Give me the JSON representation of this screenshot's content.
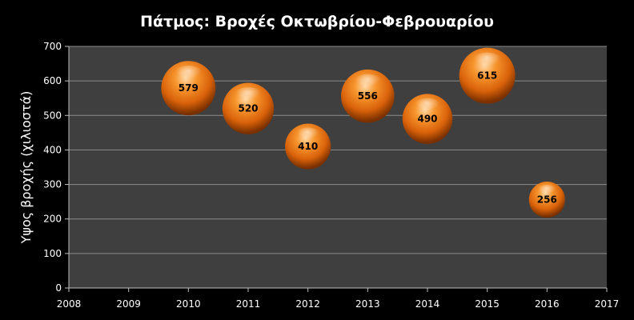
{
  "chart_data": {
    "type": "bubble",
    "title": "Πάτμος: Βροχές Οκτωβρίου-Φεβρουαρίου",
    "xlabel": "",
    "ylabel": "Υψος βροχής (χιλιοστά)",
    "xlim": [
      2008,
      2017
    ],
    "ylim": [
      0,
      700
    ],
    "x_ticks": [
      2008,
      2009,
      2010,
      2011,
      2012,
      2013,
      2014,
      2015,
      2016,
      2017
    ],
    "y_ticks": [
      0,
      100,
      200,
      300,
      400,
      500,
      600,
      700
    ],
    "grid": true,
    "legend": "none",
    "points": [
      {
        "x": 2010,
        "y": 579,
        "size": 579,
        "label": "579"
      },
      {
        "x": 2011,
        "y": 520,
        "size": 520,
        "label": "520"
      },
      {
        "x": 2012,
        "y": 410,
        "size": 410,
        "label": "410"
      },
      {
        "x": 2013,
        "y": 556,
        "size": 556,
        "label": "556"
      },
      {
        "x": 2014,
        "y": 490,
        "size": 490,
        "label": "490"
      },
      {
        "x": 2015,
        "y": 615,
        "size": 615,
        "label": "615"
      },
      {
        "x": 2016,
        "y": 256,
        "size": 256,
        "label": "256"
      }
    ],
    "colors": {
      "background": "#000000",
      "plot_area": "#3f3f3f",
      "gridline": "#8c8c8c",
      "bubble": "#e8730c",
      "text": "#ffffff"
    }
  }
}
